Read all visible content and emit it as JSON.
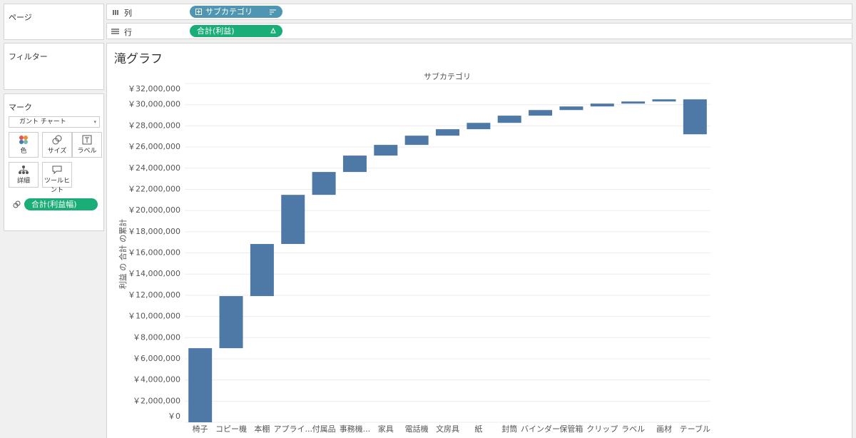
{
  "panels": {
    "pages": "ページ",
    "filters": "フィルター",
    "marks": {
      "title": "マーク",
      "mark_type": "ガント チャート",
      "buttons": [
        "色",
        "サイズ",
        "ラベル",
        "詳細",
        "ツールヒント"
      ],
      "size_pill": "合計(利益幅)"
    }
  },
  "shelves": {
    "columns": {
      "label": "列",
      "pill": "サブカテゴリ"
    },
    "rows": {
      "label": "行",
      "pill": "合計(利益)"
    }
  },
  "chart_data": {
    "type": "waterfall",
    "title": "滝グラフ",
    "header": "サブカテゴリ",
    "y_label": "利益 の 合計 の累計",
    "categories": [
      "椅子",
      "コピー機",
      "本棚",
      "アプライ...",
      "付属品",
      "事務機...",
      "家具",
      "電話機",
      "文房具",
      "紙",
      "封筒",
      "バインダー",
      "保管箱",
      "クリップ",
      "ラベル",
      "画材",
      "テーブル"
    ],
    "values": [
      7000000,
      4920000,
      4920000,
      4640000,
      2160000,
      1550000,
      1010000,
      870000,
      610000,
      600000,
      680000,
      530000,
      340000,
      270000,
      200000,
      200000,
      -3300000
    ],
    "color": "#4e79a7",
    "ylim": [
      0,
      32000000
    ],
    "grid": true,
    "yticks": [
      {
        "value": 0,
        "label": "￥0"
      },
      {
        "value": 2000000,
        "label": "￥2,000,000"
      },
      {
        "value": 4000000,
        "label": "￥4,000,000"
      },
      {
        "value": 6000000,
        "label": "￥6,000,000"
      },
      {
        "value": 8000000,
        "label": "￥8,000,000"
      },
      {
        "value": 10000000,
        "label": "￥10,000,000"
      },
      {
        "value": 12000000,
        "label": "￥12,000,000"
      },
      {
        "value": 14000000,
        "label": "￥14,000,000"
      },
      {
        "value": 16000000,
        "label": "￥16,000,000"
      },
      {
        "value": 18000000,
        "label": "￥18,000,000"
      },
      {
        "value": 20000000,
        "label": "￥20,000,000"
      },
      {
        "value": 22000000,
        "label": "￥22,000,000"
      },
      {
        "value": 24000000,
        "label": "￥24,000,000"
      },
      {
        "value": 26000000,
        "label": "￥26,000,000"
      },
      {
        "value": 28000000,
        "label": "￥28,000,000"
      },
      {
        "value": 30000000,
        "label": "￥30,000,000"
      },
      {
        "value": 32000000,
        "label": "￥32,000,000"
      }
    ]
  }
}
